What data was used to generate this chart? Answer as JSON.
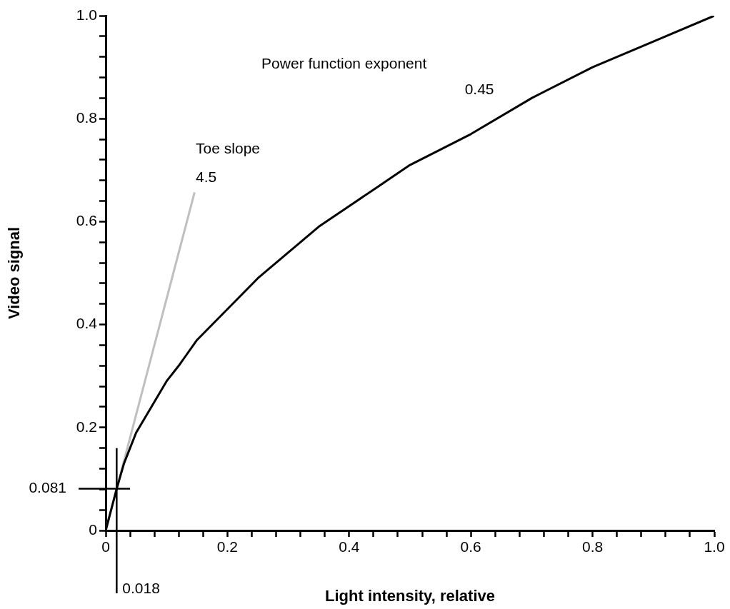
{
  "chart_data": {
    "type": "line",
    "xlabel": "Light intensity, relative",
    "ylabel": "Video signal",
    "xlim": [
      0,
      1.0
    ],
    "ylim": [
      0,
      1.0
    ],
    "xticks": [
      0,
      {
        "value": 0.04,
        "label": null
      },
      {
        "value": 0.08,
        "label": null
      },
      {
        "value": 0.12,
        "label": null
      },
      {
        "value": 0.16,
        "label": null
      },
      0.2,
      {
        "value": 0.24,
        "label": null
      },
      {
        "value": 0.28,
        "label": null
      },
      {
        "value": 0.32,
        "label": null
      },
      {
        "value": 0.36,
        "label": null
      },
      0.4,
      {
        "value": 0.44,
        "label": null
      },
      {
        "value": 0.48,
        "label": null
      },
      {
        "value": 0.52,
        "label": null
      },
      {
        "value": 0.56,
        "label": null
      },
      0.6,
      {
        "value": 0.64,
        "label": null
      },
      {
        "value": 0.68,
        "label": null
      },
      {
        "value": 0.72,
        "label": null
      },
      {
        "value": 0.76,
        "label": null
      },
      0.8,
      {
        "value": 0.84,
        "label": null
      },
      {
        "value": 0.88,
        "label": null
      },
      {
        "value": 0.92,
        "label": null
      },
      {
        "value": 0.96,
        "label": null
      },
      {
        "value": 1.0,
        "label": "1.0"
      }
    ],
    "yticks": [
      0,
      {
        "value": 0.04,
        "label": null
      },
      {
        "value": 0.08,
        "label": null
      },
      {
        "value": 0.12,
        "label": null
      },
      {
        "value": 0.16,
        "label": null
      },
      0.2,
      {
        "value": 0.24,
        "label": null
      },
      {
        "value": 0.28,
        "label": null
      },
      {
        "value": 0.32,
        "label": null
      },
      {
        "value": 0.36,
        "label": null
      },
      0.4,
      {
        "value": 0.44,
        "label": null
      },
      {
        "value": 0.48,
        "label": null
      },
      {
        "value": 0.52,
        "label": null
      },
      {
        "value": 0.56,
        "label": null
      },
      0.6,
      {
        "value": 0.64,
        "label": null
      },
      {
        "value": 0.68,
        "label": null
      },
      {
        "value": 0.72,
        "label": null
      },
      {
        "value": 0.76,
        "label": null
      },
      0.8,
      {
        "value": 0.84,
        "label": null
      },
      {
        "value": 0.88,
        "label": null
      },
      {
        "value": 0.92,
        "label": null
      },
      {
        "value": 0.96,
        "label": null
      },
      {
        "value": 1.0,
        "label": "1.0"
      }
    ],
    "series": [
      {
        "color": "#000000",
        "x": [
          0,
          0.01,
          0.018,
          0.03,
          0.04,
          0.05,
          0.07,
          0.1,
          0.12,
          0.15,
          0.2,
          0.25,
          0.3,
          0.35,
          0.4,
          0.45,
          0.5,
          0.6,
          0.7,
          0.8,
          0.9,
          1.0
        ],
        "values": [
          0,
          0.045,
          0.081,
          0.13,
          0.16,
          0.19,
          0.23,
          0.29,
          0.32,
          0.37,
          0.43,
          0.49,
          0.54,
          0.59,
          0.63,
          0.67,
          0.71,
          0.77,
          0.84,
          0.9,
          0.95,
          1.0
        ]
      },
      {
        "color": "#bfbfbf",
        "x": [
          0,
          0.146
        ],
        "values": [
          0,
          0.657
        ]
      }
    ],
    "ref_lines": [
      {
        "axis": "x",
        "value": 0.018,
        "label": "0.018",
        "color": "#000000"
      },
      {
        "axis": "y",
        "value": 0.081,
        "label": "0.081",
        "color": "#000000"
      }
    ],
    "annotations": [
      "Toe slope",
      "4.5",
      "Power function exponent",
      "0.45"
    ],
    "grid": false,
    "legend": false,
    "marker": "none",
    "line_style": "solid"
  }
}
